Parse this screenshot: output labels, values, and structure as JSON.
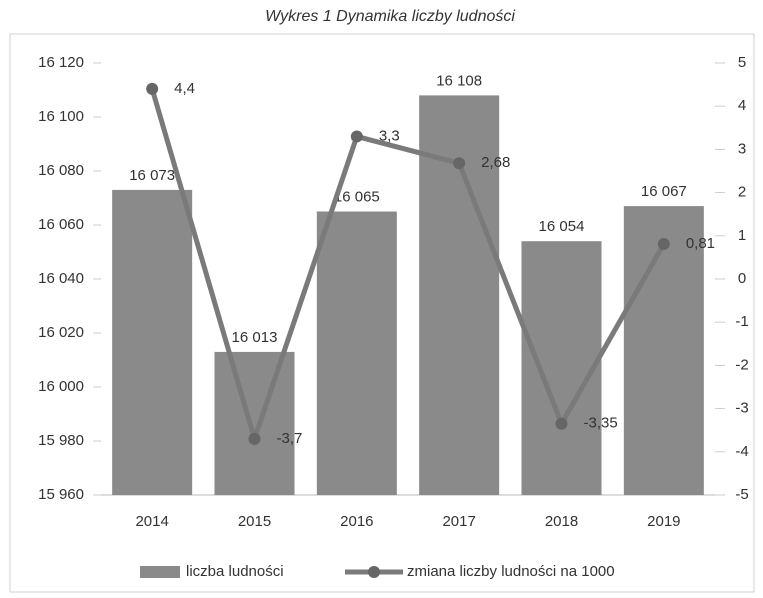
{
  "chart_data": {
    "type": "bar",
    "title": "Wykres 1 Dynamika liczby ludności",
    "categories": [
      "2014",
      "2015",
      "2016",
      "2017",
      "2018",
      "2019"
    ],
    "series": [
      {
        "name": "liczba ludności",
        "type": "bar",
        "color": "#8a8a8a",
        "values": [
          16073,
          16013,
          16065,
          16108,
          16054,
          16067
        ],
        "value_labels": [
          "16 073",
          "16 013",
          "16 065",
          "16 108",
          "16 054",
          "16 067"
        ]
      },
      {
        "name": "zmiana liczby ludności na 1000",
        "type": "line",
        "axis": "y2",
        "color": "#7a7a7a",
        "values": [
          4.4,
          -3.7,
          3.3,
          2.68,
          -3.35,
          0.81
        ],
        "value_labels": [
          "4,4",
          "-3,7",
          "3,3",
          "2,68",
          "-3,35",
          "0,81"
        ]
      }
    ],
    "ylim": [
      15960,
      16120
    ],
    "yticks": [
      {
        "value": 15960,
        "label": "15 960"
      },
      {
        "value": 15980,
        "label": "15 980"
      },
      {
        "value": 16000,
        "label": "16 000"
      },
      {
        "value": 16020,
        "label": "16 020"
      },
      {
        "value": 16040,
        "label": "16 040"
      },
      {
        "value": 16060,
        "label": "16 060"
      },
      {
        "value": 16080,
        "label": "16 080"
      },
      {
        "value": 16100,
        "label": "16 100"
      },
      {
        "value": 16120,
        "label": "16 120"
      }
    ],
    "y2lim": [
      -5,
      5
    ],
    "y2ticks": [
      -5,
      -4,
      -3,
      -2,
      -1,
      0,
      1,
      2,
      3,
      4,
      5
    ],
    "grid": false,
    "legend": "bottom"
  }
}
